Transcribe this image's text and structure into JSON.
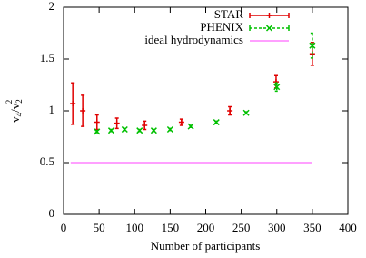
{
  "chart_data": {
    "type": "scatter",
    "xlabel": "Number of participants",
    "ylabel": [
      "v",
      "4",
      "/v",
      "2",
      "2"
    ],
    "xlim": [
      0,
      400
    ],
    "xticks": [
      0,
      50,
      100,
      150,
      200,
      250,
      300,
      350,
      400
    ],
    "ylim": [
      0,
      2
    ],
    "yticks": [
      0,
      0.5,
      1,
      1.5,
      2
    ],
    "series": [
      {
        "name": "STAR",
        "color": "#e00000",
        "marker": "plus",
        "line": "solid",
        "x": [
          13,
          27,
          47,
          75,
          114,
          166,
          234,
          299,
          350
        ],
        "values": [
          1.07,
          1.0,
          0.89,
          0.88,
          0.86,
          0.89,
          1.0,
          1.28,
          1.55
        ],
        "errors": [
          0.2,
          0.15,
          0.07,
          0.05,
          0.04,
          0.03,
          0.04,
          0.06,
          0.11
        ]
      },
      {
        "name": "PHENIX",
        "color": "#00c000",
        "marker": "cross",
        "line": "dashed",
        "x": [
          47,
          67,
          86,
          107,
          127,
          150,
          179,
          215,
          257,
          300,
          350
        ],
        "values": [
          0.8,
          0.81,
          0.82,
          0.81,
          0.81,
          0.82,
          0.85,
          0.89,
          0.98,
          1.23,
          1.63
        ],
        "errors": [
          0.01,
          0.01,
          0.01,
          0.01,
          0.01,
          0.01,
          0.01,
          0.01,
          0.01,
          0.04,
          0.12
        ]
      },
      {
        "name": "ideal hydrodynamics",
        "color": "#ff80ff",
        "marker": "none",
        "line": "solid",
        "x": [
          10,
          350
        ],
        "values": [
          0.5,
          0.5
        ]
      }
    ]
  }
}
